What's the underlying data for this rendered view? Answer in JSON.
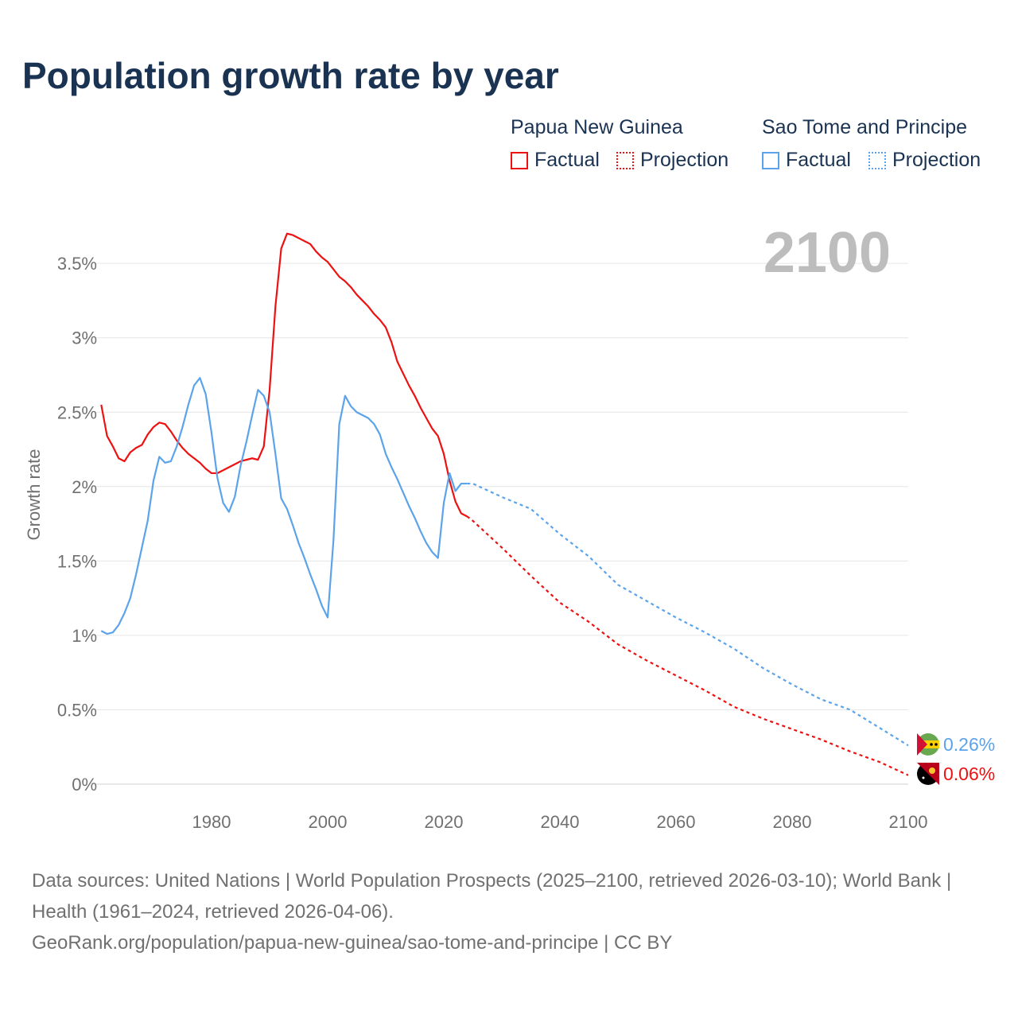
{
  "title": "Population growth rate by year",
  "legend": {
    "groups": [
      {
        "country": "Papua New Guinea",
        "factual": "Factual",
        "projection": "Projection",
        "color": "#ee1111"
      },
      {
        "country": "Sao Tome and Principe",
        "factual": "Factual",
        "projection": "Projection",
        "color": "#5ba3ea"
      }
    ]
  },
  "year_label": "2100",
  "source": {
    "line1": "Data sources: United Nations | World Population Prospects (2025–2100, retrieved 2026-03-10); World Bank | Health (1961–2024, retrieved 2026-04-06).",
    "line2": "GeoRank.org/population/papua-new-guinea/sao-tome-and-principe | CC BY"
  },
  "chart_data": {
    "type": "line",
    "title": "Population growth rate by year",
    "xlabel": "",
    "ylabel": "Growth rate",
    "xlim": [
      1961,
      2100
    ],
    "ylim": [
      0,
      3.8
    ],
    "x_ticks": [
      1980,
      2000,
      2020,
      2040,
      2060,
      2080,
      2100
    ],
    "y_ticks": [
      0,
      0.5,
      1,
      1.5,
      2,
      2.5,
      3,
      3.5
    ],
    "y_tick_labels": [
      "0%",
      "0.5%",
      "1%",
      "1.5%",
      "2%",
      "2.5%",
      "3%",
      "3.5%"
    ],
    "grid": true,
    "legend_position": "top-right",
    "series": [
      {
        "name": "Papua New Guinea",
        "color": "#ee1111",
        "end_label": "0.06%",
        "factual": {
          "x_start": 1961,
          "values": [
            2.55,
            2.34,
            2.27,
            2.19,
            2.17,
            2.23,
            2.26,
            2.28,
            2.35,
            2.4,
            2.43,
            2.42,
            2.37,
            2.31,
            2.26,
            2.22,
            2.19,
            2.16,
            2.12,
            2.09,
            2.09,
            2.11,
            2.13,
            2.15,
            2.17,
            2.18,
            2.19,
            2.18,
            2.27,
            2.65,
            3.21,
            3.6,
            3.7,
            3.69,
            3.67,
            3.65,
            3.63,
            3.58,
            3.54,
            3.51,
            3.46,
            3.41,
            3.38,
            3.34,
            3.29,
            3.25,
            3.21,
            3.16,
            3.12,
            3.07,
            2.97,
            2.84,
            2.76,
            2.68,
            2.61,
            2.53,
            2.46,
            2.39,
            2.34,
            2.22,
            2.04,
            1.9,
            1.82,
            1.8
          ]
        },
        "projection": {
          "x": [
            2024,
            2025,
            2030,
            2035,
            2040,
            2045,
            2050,
            2055,
            2060,
            2065,
            2070,
            2075,
            2080,
            2085,
            2090,
            2095,
            2100
          ],
          "values": [
            1.8,
            1.77,
            1.59,
            1.4,
            1.22,
            1.09,
            0.94,
            0.83,
            0.73,
            0.63,
            0.52,
            0.44,
            0.37,
            0.3,
            0.22,
            0.15,
            0.06
          ]
        }
      },
      {
        "name": "Sao Tome and Principe",
        "color": "#5ba3ea",
        "end_label": "0.26%",
        "factual": {
          "x_start": 1961,
          "values": [
            1.03,
            1.01,
            1.02,
            1.07,
            1.15,
            1.25,
            1.41,
            1.59,
            1.77,
            2.04,
            2.2,
            2.16,
            2.17,
            2.27,
            2.4,
            2.55,
            2.68,
            2.73,
            2.62,
            2.36,
            2.06,
            1.89,
            1.83,
            1.93,
            2.14,
            2.3,
            2.48,
            2.65,
            2.61,
            2.5,
            2.22,
            1.92,
            1.85,
            1.74,
            1.62,
            1.52,
            1.41,
            1.31,
            1.2,
            1.12,
            1.64,
            2.42,
            2.61,
            2.54,
            2.5,
            2.48,
            2.46,
            2.42,
            2.35,
            2.22,
            2.13,
            2.05,
            1.96,
            1.87,
            1.79,
            1.7,
            1.62,
            1.56,
            1.52,
            1.89,
            2.09,
            1.97,
            2.02,
            2.02
          ]
        },
        "projection": {
          "x": [
            2024,
            2025,
            2030,
            2035,
            2040,
            2045,
            2050,
            2055,
            2060,
            2065,
            2070,
            2075,
            2080,
            2085,
            2090,
            2095,
            2100
          ],
          "values": [
            2.02,
            2.02,
            1.93,
            1.85,
            1.68,
            1.53,
            1.34,
            1.23,
            1.12,
            1.02,
            0.91,
            0.78,
            0.67,
            0.57,
            0.5,
            0.38,
            0.26
          ]
        }
      }
    ]
  }
}
